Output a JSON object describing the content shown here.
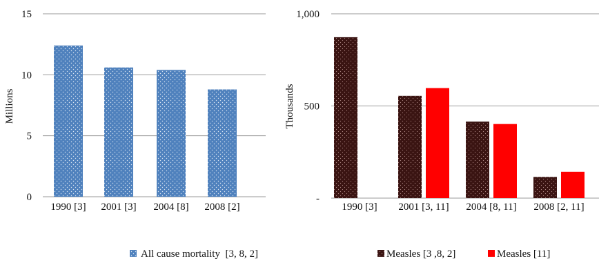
{
  "colors": {
    "all_cause": "#4f81bd",
    "measles_a": "#3a1412",
    "measles_b": "#ff0000"
  },
  "chart_data": [
    {
      "type": "bar",
      "ylabel": "Millions",
      "ylim": [
        0,
        15
      ],
      "yticks": [
        "0",
        "5",
        "10",
        "15"
      ],
      "grid": true,
      "legend_position": "bottom",
      "categories": [
        "1990 [3]",
        "2001 [3]",
        "2004 [8]",
        "2008 [2]"
      ],
      "series": [
        {
          "name": "All cause mortality  [3, 8, 2]",
          "color": "all_cause",
          "pattern": "dots",
          "values": [
            12.4,
            10.6,
            10.4,
            8.8
          ]
        }
      ]
    },
    {
      "type": "bar",
      "ylabel": "Thousands",
      "ylim": [
        0,
        1000
      ],
      "yticks": [
        "-",
        "500",
        "1,000"
      ],
      "grid": true,
      "legend_position": "bottom",
      "categories": [
        "1990 [3]",
        "2001 [3, 11]",
        "2004 [8, 11]",
        "2008 [2, 11]"
      ],
      "series": [
        {
          "name": "Measles [3 ,8, 2]",
          "color": "measles_a",
          "pattern": "dots",
          "values": [
            873,
            555,
            415,
            115
          ]
        },
        {
          "name": "Measles [11]",
          "color": "measles_b",
          "pattern": "none",
          "values": [
            null,
            597,
            402,
            143
          ]
        }
      ]
    }
  ]
}
